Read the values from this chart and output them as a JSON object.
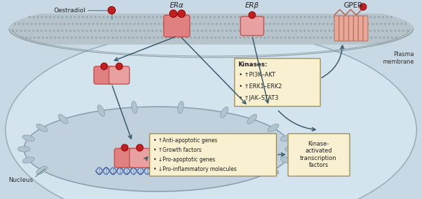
{
  "bg_color": "#c8d8e4",
  "cell_fill": "#d4e4ee",
  "cell_edge": "#9ab0bc",
  "nucleus_fill": "#c0d0dc",
  "nucleus_edge": "#8aa0b0",
  "membrane_fill": "#b8c4cc",
  "membrane_edge": "#8a9aa0",
  "membrane_dot_color": "#9aacb4",
  "pore_fill": "#b0c4d0",
  "pore_edge": "#8aa0b0",
  "receptor_fill": "#e08080",
  "receptor_fill2": "#e8a0a0",
  "receptor_edge": "#c05050",
  "estradiol_fill": "#c02020",
  "estradiol_edge": "#900000",
  "gper_fill": "#e8a898",
  "gper_edge": "#b86858",
  "arrow_color": "#3a5a6a",
  "box_fill": "#f8f0d0",
  "box_edge": "#a09050",
  "dna_color1": "#4060a0",
  "dna_color2": "#6080c0",
  "text_dark": "#202020",
  "text_label": "#303030",
  "line_color": "#5a7a8a",
  "label_ERa": "ERα",
  "label_ERb": "ERβ",
  "label_GPER": "GPER",
  "label_oestradiol": "Oestradiol",
  "label_nucleus": "Nucleus",
  "label_plasma": "Plasma\nmembrane",
  "kinases_title": "Kinases:",
  "kinases_items": [
    "↑PI3K–AKT",
    "↑ERK1–ERK2",
    "↑JAK–STAT3"
  ],
  "genes_items": [
    "↑Anti-apoptotic genes",
    "↑Growth factors",
    "↓Pro-apoptotic genes",
    "↓Pro-inflammatory molecules"
  ],
  "label_kinase_tf": "Kinase-\nactivated\ntranscription\nfactors"
}
